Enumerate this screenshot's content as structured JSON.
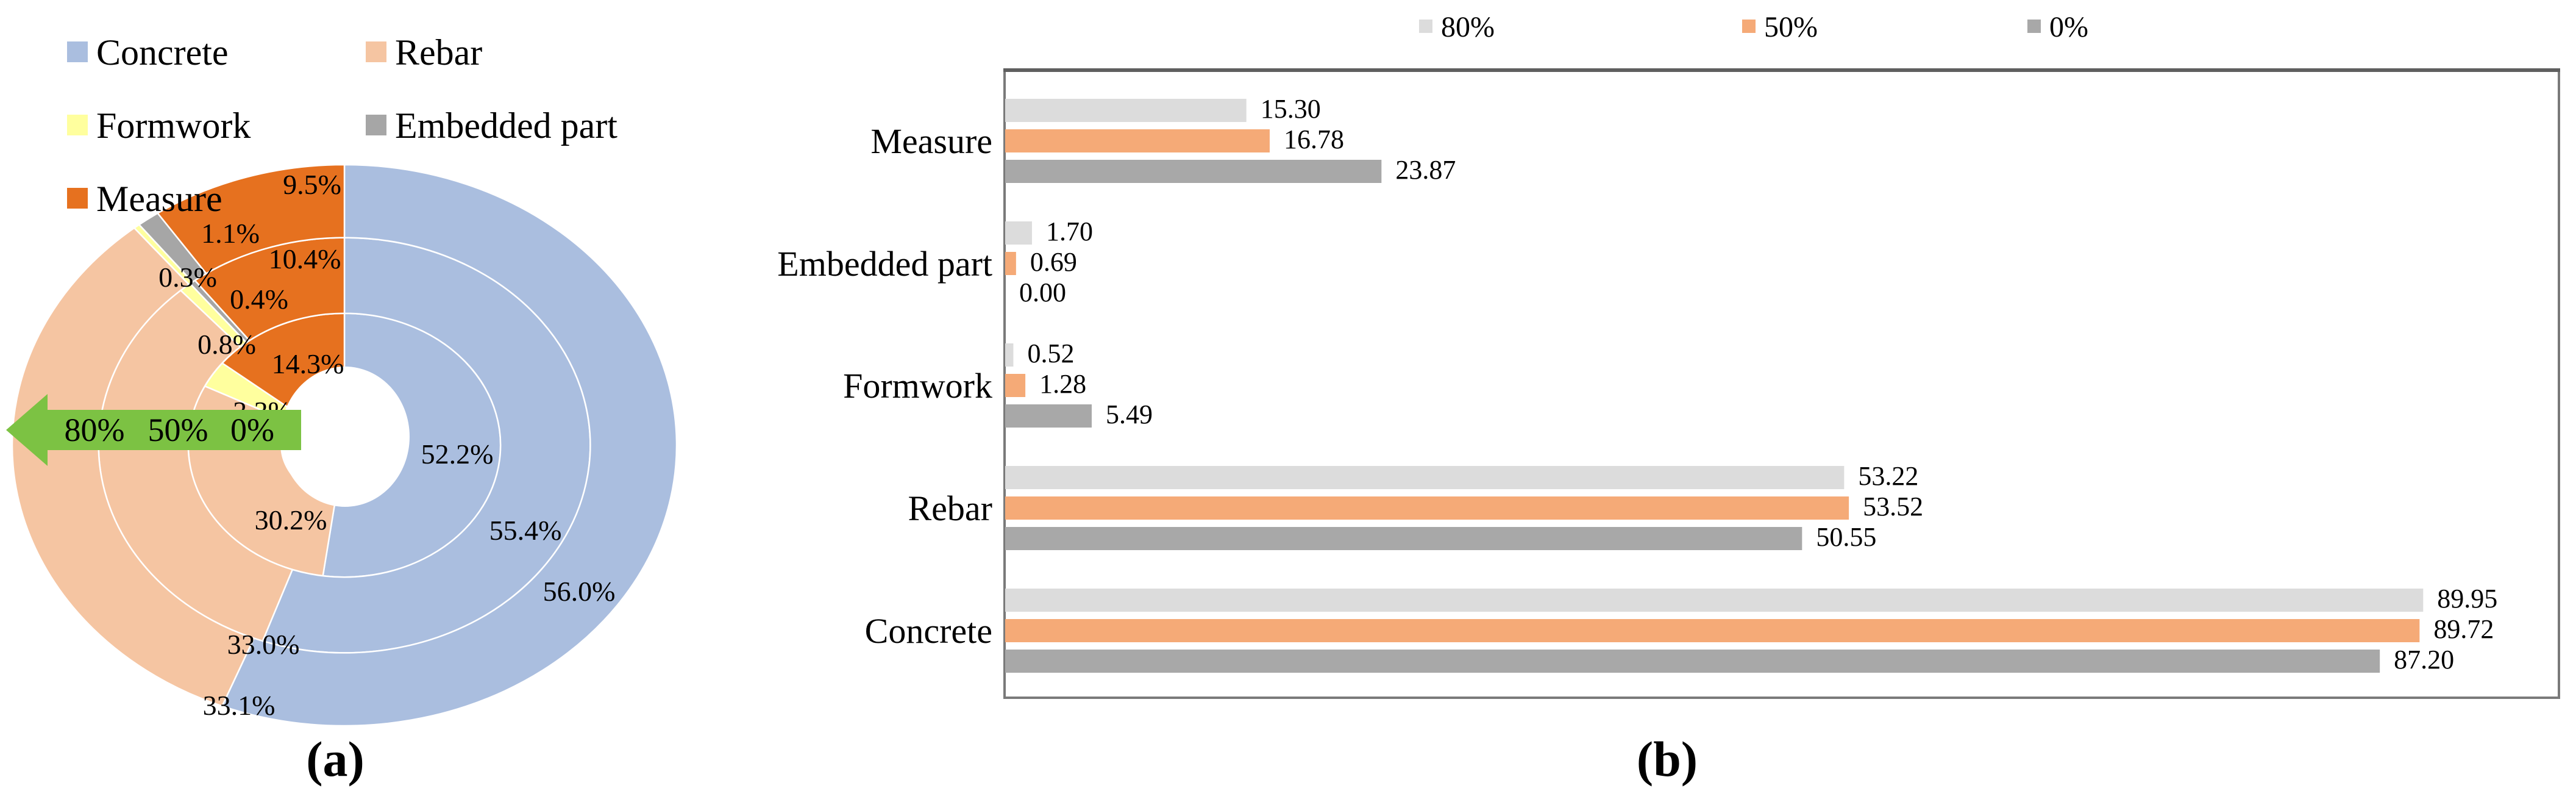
{
  "figure": {
    "caption_a": "(a)",
    "caption_b": "(b)"
  },
  "colors": {
    "concrete": "#aabedf",
    "rebar": "#f5c5a2",
    "formwork": "#ffff9e",
    "embedded_part": "#a6a6a6",
    "measure": "#e6711f",
    "series_80": "#dcdcdc",
    "series_50": "#f5aa77",
    "series_0": "#a8a8a8",
    "arrow_green": "#7cc243",
    "separator_white": "#ffffff",
    "box_border": "#7a7a7a"
  },
  "chart_data": [
    {
      "type": "pie",
      "subtype": "multi-ring-donut",
      "categories": [
        "Concrete",
        "Rebar",
        "Formwork",
        "Embedded part",
        "Measure"
      ],
      "legend": [
        {
          "label": "Concrete",
          "category": "concrete"
        },
        {
          "label": "Formwork",
          "category": "formwork"
        },
        {
          "label": "Measure",
          "category": "measure"
        },
        {
          "label": "Rebar",
          "category": "rebar"
        },
        {
          "label": "Embedded part",
          "category": "embedded_part"
        }
      ],
      "rings": [
        {
          "name": "0%",
          "position": "inner",
          "values_pct": [
            52.2,
            30.2,
            3.3,
            0.0,
            14.3
          ],
          "labels": [
            "52.2%",
            "30.2%",
            "3.3%",
            "",
            "14.3%"
          ]
        },
        {
          "name": "50%",
          "position": "middle",
          "values_pct": [
            55.4,
            33.0,
            0.8,
            0.4,
            10.4
          ],
          "labels": [
            "55.4%",
            "33.0%",
            "0.8%",
            "0.4%",
            "10.4%"
          ]
        },
        {
          "name": "80%",
          "position": "outer",
          "values_pct": [
            56.0,
            33.1,
            0.3,
            1.1,
            9.5
          ],
          "labels": [
            "56.0%",
            "33.1%",
            "0.3%",
            "1.1%",
            "9.5%"
          ]
        }
      ],
      "arrow_labels": [
        "80%",
        "50%",
        "0%"
      ],
      "grid": false
    },
    {
      "type": "bar",
      "orientation": "horizontal",
      "categories": [
        "Measure",
        "Embedded part",
        "Formwork",
        "Rebar",
        "Concrete"
      ],
      "series": [
        {
          "name": "80%",
          "color_key": "series_80",
          "values": [
            15.3,
            1.7,
            0.52,
            53.22,
            89.95
          ]
        },
        {
          "name": "50%",
          "color_key": "series_50",
          "values": [
            16.78,
            0.69,
            1.28,
            53.52,
            89.72
          ]
        },
        {
          "name": "0%",
          "color_key": "series_0",
          "values": [
            23.87,
            0.0,
            5.49,
            50.55,
            87.2
          ]
        }
      ],
      "value_label_decimals": 2,
      "xlim": [
        0,
        98.6
      ],
      "legend_position": "top",
      "grid": false
    }
  ]
}
